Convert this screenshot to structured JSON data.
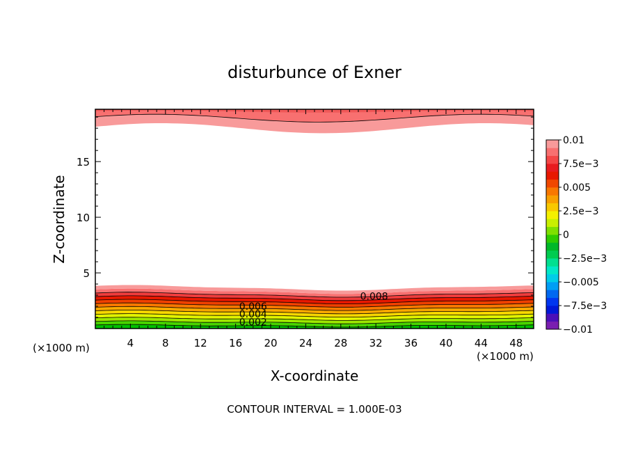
{
  "chart_data": {
    "type": "contour",
    "title": "disturbunce of Exner",
    "xlabel": "X-coordinate",
    "ylabel": "Z-coordinate",
    "x_unit_left": "(×1000 m)",
    "x_unit_right": "(×1000 m)",
    "xlim": [
      0,
      50
    ],
    "ylim": [
      0,
      19.7
    ],
    "x_ticks": [
      "4",
      "8",
      "12",
      "16",
      "20",
      "24",
      "28",
      "32",
      "36",
      "40",
      "44",
      "48"
    ],
    "x_tick_values": [
      4,
      8,
      12,
      16,
      20,
      24,
      28,
      32,
      36,
      40,
      44,
      48
    ],
    "y_ticks": [
      "5",
      "10",
      "15"
    ],
    "y_tick_values": [
      5,
      10,
      15
    ],
    "contour_interval_text": "CONTOUR INTERVAL = 1.000E-03",
    "contour_labels": [
      {
        "text": "0.008",
        "x": 31.8,
        "z": 2.9
      },
      {
        "text": "0.006",
        "x": 18.0,
        "z": 2.0
      },
      {
        "text": "0.004",
        "x": 18.0,
        "z": 1.3
      },
      {
        "text": "0.002",
        "x": 18.0,
        "z": 0.6
      }
    ],
    "colorbar": {
      "labels": [
        "0.01",
        "7.5e−3",
        "0.005",
        "2.5e−3",
        "0",
        "−2.5e−3",
        "−0.005",
        "−7.5e−3",
        "−0.01"
      ],
      "min": -0.01,
      "max": 0.01,
      "colors": [
        "#7a1fb0",
        "#4b10b8",
        "#0018d8",
        "#0036f0",
        "#0068f0",
        "#009ef5",
        "#00cde8",
        "#00e8c8",
        "#00e090",
        "#00cc50",
        "#00b828",
        "#2ecc00",
        "#7ee000",
        "#c8f000",
        "#f4f000",
        "#f8c800",
        "#f8a000",
        "#f87800",
        "#f04800",
        "#e81800",
        "#e81c20",
        "#f44646",
        "#f87070",
        "#f89a9a"
      ]
    },
    "bottom_band": {
      "description_colors": [
        "#00c000",
        "#48d400",
        "#9ee800",
        "#e2f400",
        "#f8d800",
        "#f8a800",
        "#f87800",
        "#f04000",
        "#e81800",
        "#f03c3c",
        "#f87070",
        "#f89a9a"
      ],
      "levels": [
        0.0,
        0.001,
        0.002,
        0.003,
        0.004,
        0.005,
        0.006,
        0.007,
        0.008,
        0.009,
        0.01
      ]
    }
  }
}
